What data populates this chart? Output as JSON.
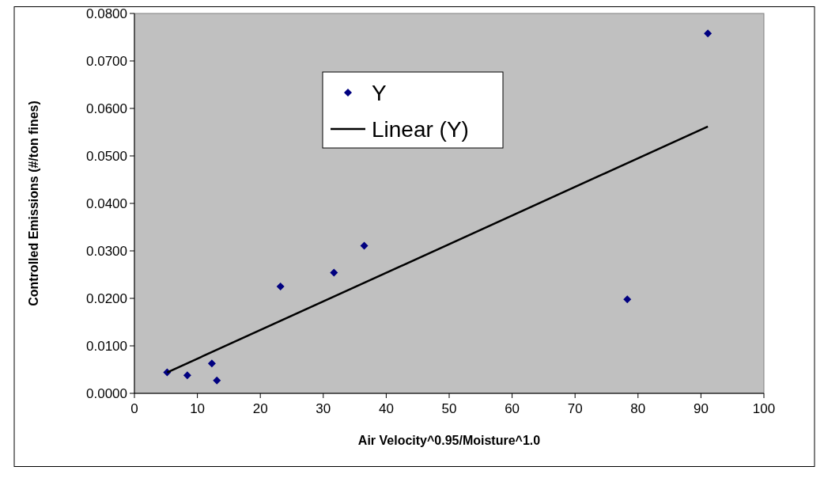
{
  "chart_data": {
    "type": "scatter",
    "xlabel": "Air Velocity^0.95/Moisture^1.0",
    "ylabel": "Controlled Emissions (#/ton fines)",
    "xlim": [
      0,
      100
    ],
    "xticks": [
      0,
      10,
      20,
      30,
      40,
      50,
      60,
      70,
      80,
      90,
      100
    ],
    "ylim": [
      0,
      0.08
    ],
    "yticks": [
      {
        "value": 0,
        "label": "0.0000"
      },
      {
        "value": 0.01,
        "label": "0.0100"
      },
      {
        "value": 0.02,
        "label": "0.0200"
      },
      {
        "value": 0.03,
        "label": "0.0300"
      },
      {
        "value": 0.04,
        "label": "0.0400"
      },
      {
        "value": 0.05,
        "label": "0.0500"
      },
      {
        "value": 0.06,
        "label": "0.0600"
      },
      {
        "value": 0.07,
        "label": "0.0700"
      },
      {
        "value": 0.08,
        "label": "0.0800"
      }
    ],
    "grid": false,
    "legend": "top",
    "marker": "diamond",
    "series": [
      {
        "name": "Y",
        "color": "#000080",
        "x": [
          5.2,
          8.4,
          12.3,
          13.1,
          23.2,
          31.7,
          36.5,
          78.3,
          91.1
        ],
        "values": [
          0.0044,
          0.0038,
          0.0063,
          0.0027,
          0.0225,
          0.0254,
          0.0311,
          0.0198,
          0.0758
        ]
      },
      {
        "name": "Linear (Y)",
        "type": "line",
        "color": "#000000",
        "line_style": "solid",
        "marker": "none",
        "x": [
          5.2,
          91.1
        ],
        "values": [
          0.0044,
          0.0562
        ]
      }
    ]
  }
}
